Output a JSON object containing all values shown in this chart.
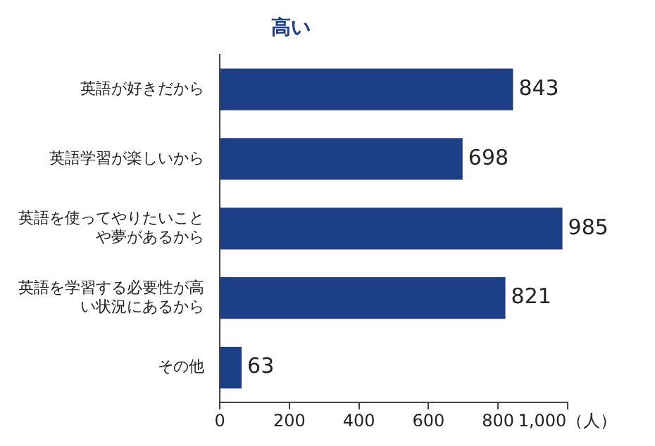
{
  "chart_data": {
    "type": "bar",
    "orientation": "horizontal",
    "title": "高い",
    "categories": [
      "英語が好きだから",
      "英語学習が楽しいから",
      "英語を使ってやりたいことや夢があるから",
      "英語を学習する必要性が高い状況にあるから",
      "その他"
    ],
    "values": [
      843,
      698,
      985,
      821,
      63
    ],
    "color": "#1d3f87",
    "xlim": [
      0,
      1000
    ],
    "xticks": [
      0,
      200,
      400,
      600,
      800,
      {
        "value": 1000,
        "label": "1,000（人）"
      }
    ],
    "grid": false,
    "legend": false,
    "data_labels": true
  }
}
